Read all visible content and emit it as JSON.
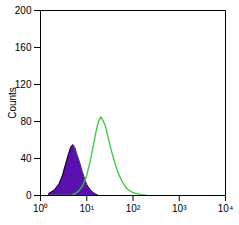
{
  "chart_data": {
    "type": "histogram",
    "y_label": "Counts",
    "log": "x",
    "grid": false,
    "xlim": [
      1,
      10000
    ],
    "xticks": [
      {
        "value": 1,
        "label": "10⁰"
      },
      {
        "value": 10,
        "label": "10¹"
      },
      {
        "value": 100,
        "label": "10²"
      },
      {
        "value": 1000,
        "label": "10³"
      },
      {
        "value": 10000,
        "label": "10⁴"
      }
    ],
    "ylim": [
      0,
      200
    ],
    "yticks": [
      0,
      40,
      80,
      120,
      160,
      200
    ],
    "x": [
      1.5,
      2,
      2.5,
      3,
      3.5,
      4,
      4.5,
      5,
      5.5,
      6,
      7,
      8,
      9,
      10,
      12,
      14,
      16,
      18,
      20,
      22,
      25,
      28,
      32,
      36,
      40,
      45,
      50,
      60,
      70,
      80,
      100,
      120,
      150,
      200
    ],
    "series": [
      {
        "type": "area",
        "color": "#5a10b0",
        "values": [
          2,
          6,
          12,
          22,
          34,
          44,
          52,
          55,
          52,
          46,
          36,
          26,
          18,
          12,
          6,
          3,
          1,
          0,
          0,
          0,
          0,
          0,
          0,
          0,
          0,
          0,
          0,
          0,
          0,
          0,
          0,
          0,
          0,
          0
        ]
      },
      {
        "type": "line",
        "color": "#33cc33",
        "values": [
          0,
          0,
          0,
          0,
          0,
          0,
          0,
          1,
          2,
          3,
          6,
          10,
          16,
          22,
          38,
          55,
          70,
          80,
          85,
          82,
          76,
          66,
          54,
          44,
          36,
          28,
          22,
          14,
          9,
          6,
          3,
          2,
          1,
          0
        ]
      }
    ]
  }
}
